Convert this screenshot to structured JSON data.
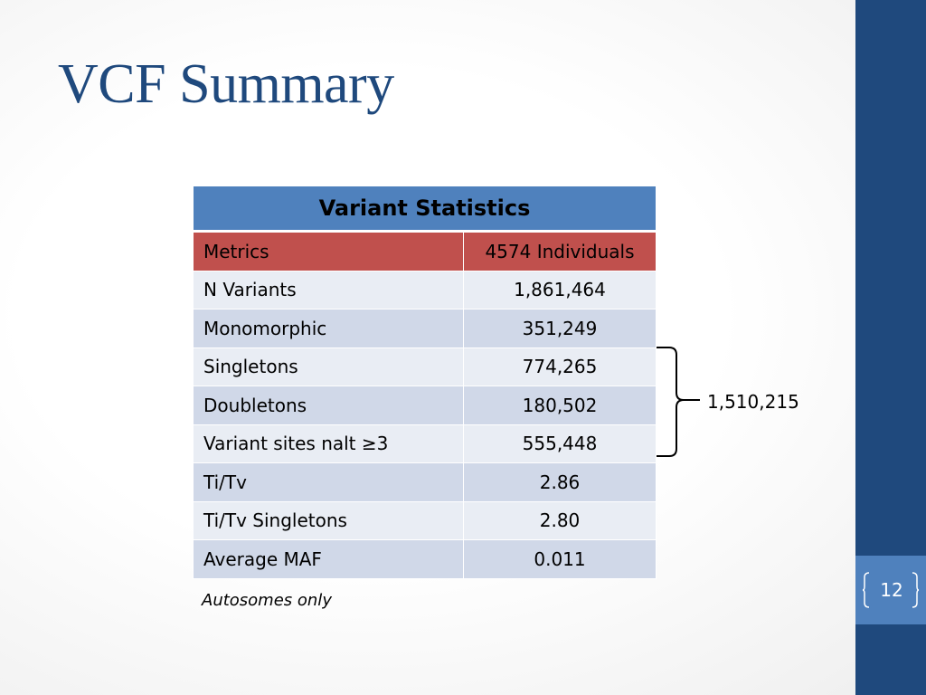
{
  "slide": {
    "title": "VCF Summary",
    "page_number": "12",
    "footnote": "Autosomes only"
  },
  "table": {
    "title": "Variant Statistics",
    "header": {
      "label": "Metrics",
      "value": "4574 Individuals"
    },
    "rows": [
      {
        "label": "N Variants",
        "value": "1,861,464"
      },
      {
        "label": "Monomorphic",
        "value": "351,249"
      },
      {
        "label": "Singletons",
        "value": "774,265"
      },
      {
        "label": "Doubletons",
        "value": "180,502"
      },
      {
        "label": "Variant sites nalt ≥3",
        "value": "555,448"
      },
      {
        "label": "Ti/Tv",
        "value": "2.86"
      },
      {
        "label": "Ti/Tv Singletons",
        "value": "2.80"
      },
      {
        "label": "Average MAF",
        "value": "0.011"
      }
    ]
  },
  "group_annotation": {
    "total": "1,510,215"
  },
  "colors": {
    "title": "#1f497d",
    "sidebar": "#1f497d",
    "page_box": "#4f81bd",
    "table_title_bg": "#4f81bd",
    "header_bg": "#c0504d",
    "row_light": "#e9edf4",
    "row_dark": "#d0d8e8"
  }
}
